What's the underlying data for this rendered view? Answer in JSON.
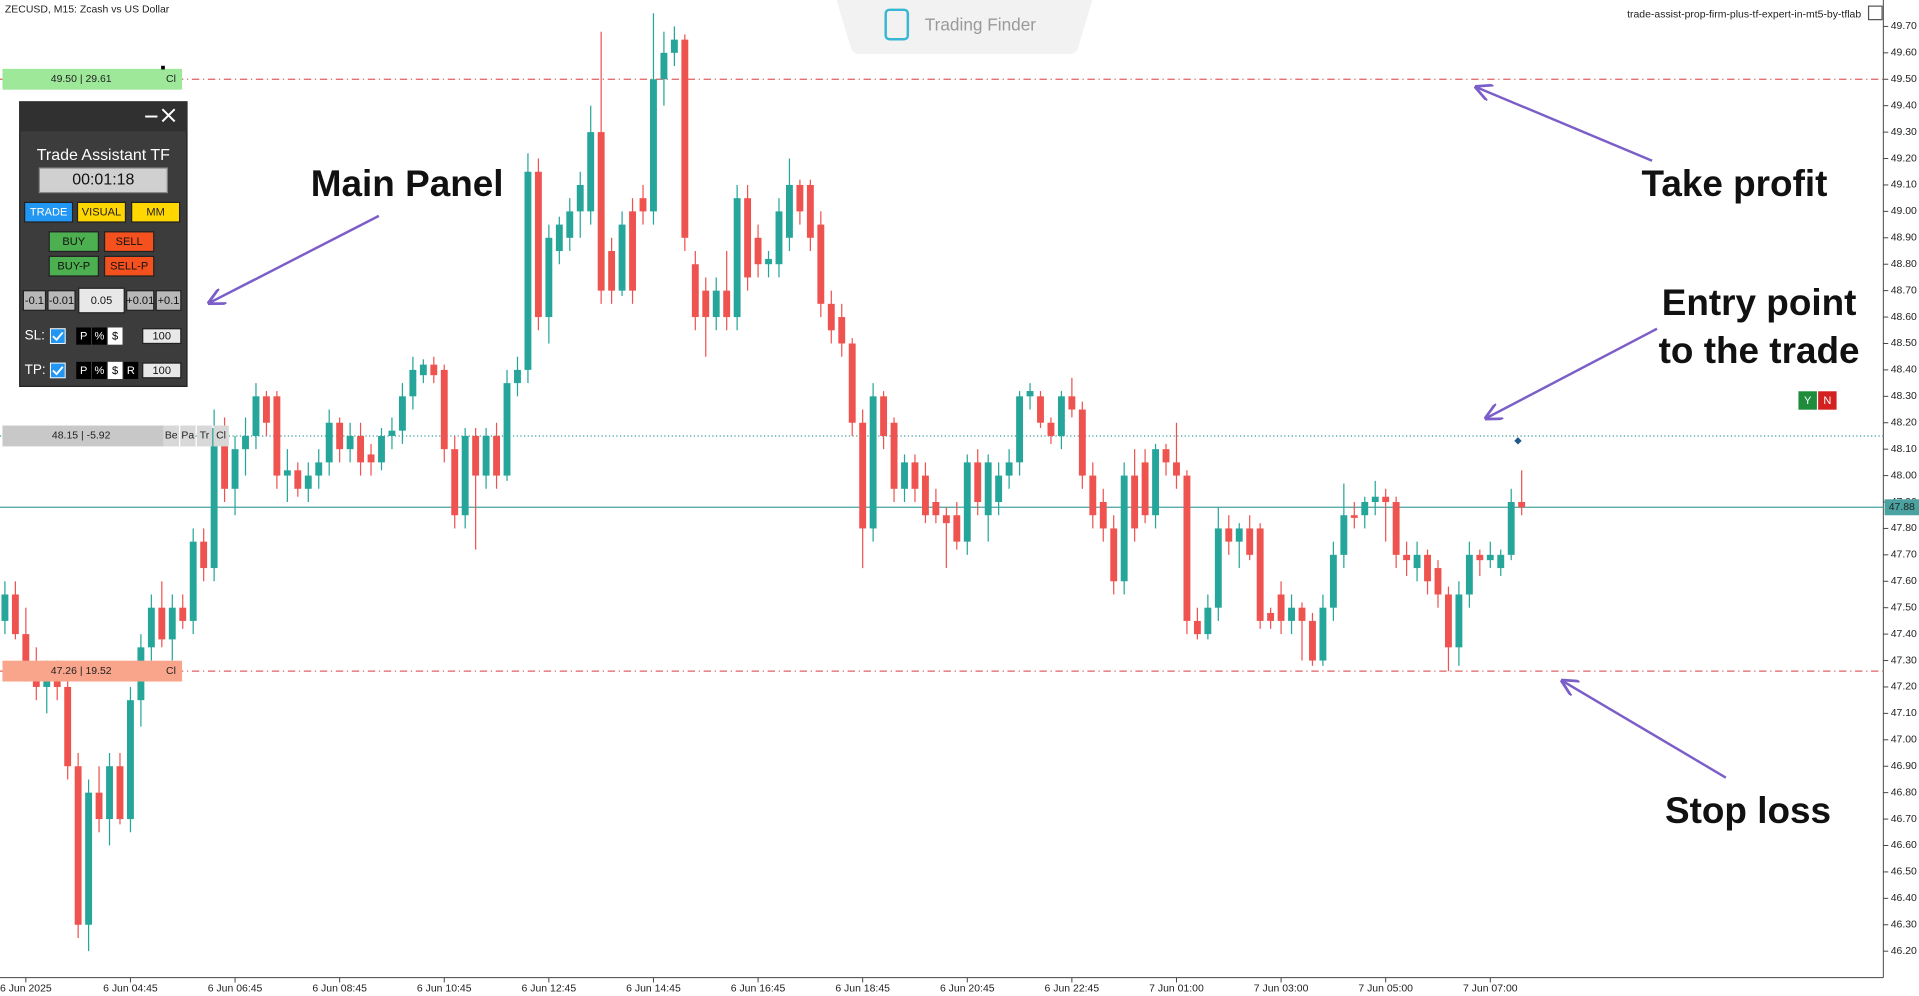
{
  "header": {
    "symbol": "ZECUSD, M15:  Zcash vs US Dollar",
    "brand": "Trading Finder",
    "file": "trade-assist-prop-firm-plus-tf-expert-in-mt5-by-tflab"
  },
  "panel": {
    "title": "Trade Assistant TF",
    "timer": "00:01:18",
    "modes": [
      "TRADE",
      "VISUAL",
      "MM"
    ],
    "orders": [
      "BUY",
      "SELL",
      "BUY-P",
      "SELL-P"
    ],
    "steps": [
      "-0.1",
      "-0.01",
      "0.05",
      "+0.01",
      "+0.1"
    ],
    "sl": {
      "label": "SL:",
      "units": [
        "P",
        "%",
        "$"
      ],
      "amount": "100"
    },
    "tp": {
      "label": "TP:",
      "units": [
        "P",
        "%",
        "$",
        "R"
      ],
      "amount": "100"
    }
  },
  "level_buttons": {
    "tp": [
      "Cl"
    ],
    "entry": [
      "Be",
      "Pa",
      "Tr",
      "Cl"
    ],
    "sl": [
      "Cl"
    ]
  },
  "confirm": [
    "Y",
    "N"
  ],
  "annotations": {
    "main_panel": "Main Panel",
    "take_profit": "Take profit",
    "entry": [
      "Entry point",
      "to the trade"
    ],
    "stop_loss": "Stop loss"
  },
  "chart_data": {
    "type": "candlestick",
    "up_color": "#26a69a",
    "down_color": "#ef5350",
    "ylim": [
      46.1,
      49.8
    ],
    "yticks": [
      {
        "value": 46.2,
        "label": "46.20"
      },
      {
        "value": 46.3,
        "label": "46.30"
      },
      {
        "value": 46.4,
        "label": "46.40"
      },
      {
        "value": 46.5,
        "label": "46.50"
      },
      {
        "value": 46.6,
        "label": "46.60"
      },
      {
        "value": 46.7,
        "label": "46.70"
      },
      {
        "value": 46.8,
        "label": "46.80"
      },
      {
        "value": 46.9,
        "label": "46.90"
      },
      {
        "value": 47.0,
        "label": "47.00"
      },
      {
        "value": 47.1,
        "label": "47.10"
      },
      {
        "value": 47.2,
        "label": "47.20"
      },
      {
        "value": 47.3,
        "label": "47.30"
      },
      {
        "value": 47.4,
        "label": "47.40"
      },
      {
        "value": 47.5,
        "label": "47.50"
      },
      {
        "value": 47.6,
        "label": "47.60"
      },
      {
        "value": 47.7,
        "label": "47.70"
      },
      {
        "value": 47.8,
        "label": "47.80"
      },
      {
        "value": 47.9,
        "label": "47.90"
      },
      {
        "value": 48.0,
        "label": "48.00"
      },
      {
        "value": 48.1,
        "label": "48.10"
      },
      {
        "value": 48.2,
        "label": "48.20"
      },
      {
        "value": 48.3,
        "label": "48.30"
      },
      {
        "value": 48.4,
        "label": "48.40"
      },
      {
        "value": 48.5,
        "label": "48.50"
      },
      {
        "value": 48.6,
        "label": "48.60"
      },
      {
        "value": 48.7,
        "label": "48.70"
      },
      {
        "value": 48.8,
        "label": "48.80"
      },
      {
        "value": 48.9,
        "label": "48.90"
      },
      {
        "value": 49.0,
        "label": "49.00"
      },
      {
        "value": 49.1,
        "label": "49.10"
      },
      {
        "value": 49.2,
        "label": "49.20"
      },
      {
        "value": 49.3,
        "label": "49.30"
      },
      {
        "value": 49.4,
        "label": "49.40"
      },
      {
        "value": 49.5,
        "label": "49.50"
      },
      {
        "value": 49.6,
        "label": "49.60"
      },
      {
        "value": 49.7,
        "label": "49.70"
      }
    ],
    "categories": [
      null,
      null,
      "6 Jun 2025",
      null,
      null,
      null,
      null,
      null,
      null,
      null,
      null,
      null,
      "6 Jun 04:45",
      null,
      null,
      null,
      null,
      null,
      null,
      null,
      null,
      null,
      "6 Jun 06:45",
      null,
      null,
      null,
      null,
      null,
      null,
      null,
      null,
      null,
      "6 Jun 08:45",
      null,
      null,
      null,
      null,
      null,
      null,
      null,
      null,
      null,
      "6 Jun 10:45",
      null,
      null,
      null,
      null,
      null,
      null,
      null,
      null,
      null,
      "6 Jun 12:45",
      null,
      null,
      null,
      null,
      null,
      null,
      null,
      null,
      null,
      "6 Jun 14:45",
      null,
      null,
      null,
      null,
      null,
      null,
      null,
      null,
      null,
      "6 Jun 16:45",
      null,
      null,
      null,
      null,
      null,
      null,
      null,
      null,
      null,
      "6 Jun 18:45",
      null,
      null,
      null,
      null,
      null,
      null,
      null,
      null,
      null,
      "6 Jun 20:45",
      null,
      null,
      null,
      null,
      null,
      null,
      null,
      null,
      null,
      "6 Jun 22:45",
      null,
      null,
      null,
      null,
      null,
      null,
      null,
      null,
      null,
      "7 Jun 01:00",
      null,
      null,
      null,
      null,
      null,
      null,
      null,
      null,
      null,
      "7 Jun 03:00",
      null,
      null,
      null,
      null,
      null,
      null,
      null,
      null,
      null,
      "7 Jun 05:00",
      null,
      null,
      null,
      null,
      null,
      null,
      null,
      null,
      null,
      "7 Jun 07:00",
      null,
      null,
      null
    ],
    "ohlc": [
      [
        47.45,
        47.6,
        47.4,
        47.55
      ],
      [
        47.55,
        47.6,
        47.38,
        47.4
      ],
      [
        47.4,
        47.5,
        47.22,
        47.28
      ],
      [
        47.28,
        47.35,
        47.15,
        47.2
      ],
      [
        47.2,
        47.3,
        47.1,
        47.25
      ],
      [
        47.25,
        47.3,
        47.15,
        47.2
      ],
      [
        47.2,
        47.25,
        46.85,
        46.9
      ],
      [
        46.9,
        46.95,
        46.25,
        46.3
      ],
      [
        46.3,
        46.85,
        46.2,
        46.8
      ],
      [
        46.8,
        46.9,
        46.65,
        46.7
      ],
      [
        46.7,
        46.95,
        46.6,
        46.9
      ],
      [
        46.9,
        46.95,
        46.68,
        46.7
      ],
      [
        46.7,
        47.2,
        46.65,
        47.15
      ],
      [
        47.15,
        47.4,
        47.05,
        47.35
      ],
      [
        47.35,
        47.55,
        47.3,
        47.5
      ],
      [
        47.5,
        47.6,
        47.35,
        47.38
      ],
      [
        47.38,
        47.55,
        47.3,
        47.5
      ],
      [
        47.5,
        47.55,
        47.42,
        47.45
      ],
      [
        47.45,
        47.8,
        47.4,
        47.75
      ],
      [
        47.75,
        47.8,
        47.6,
        47.65
      ],
      [
        47.65,
        48.25,
        47.6,
        48.18
      ],
      [
        48.18,
        48.22,
        47.9,
        47.95
      ],
      [
        47.95,
        48.15,
        47.85,
        48.1
      ],
      [
        48.1,
        48.22,
        48.0,
        48.15
      ],
      [
        48.15,
        48.35,
        48.1,
        48.3
      ],
      [
        48.3,
        48.32,
        48.15,
        48.2
      ],
      [
        48.3,
        48.32,
        47.95,
        48.0
      ],
      [
        48.0,
        48.1,
        47.9,
        48.02
      ],
      [
        48.02,
        48.05,
        47.92,
        47.95
      ],
      [
        47.95,
        48.05,
        47.9,
        48.0
      ],
      [
        48.0,
        48.1,
        47.95,
        48.05
      ],
      [
        48.05,
        48.25,
        48.0,
        48.2
      ],
      [
        48.2,
        48.22,
        48.05,
        48.1
      ],
      [
        48.1,
        48.2,
        48.05,
        48.15
      ],
      [
        48.15,
        48.2,
        48.0,
        48.05
      ],
      [
        48.08,
        48.12,
        48.0,
        48.05
      ],
      [
        48.05,
        48.18,
        48.02,
        48.15
      ],
      [
        48.15,
        48.22,
        48.1,
        48.17
      ],
      [
        48.17,
        48.35,
        48.12,
        48.3
      ],
      [
        48.3,
        48.45,
        48.25,
        48.4
      ],
      [
        48.38,
        48.44,
        48.35,
        48.42
      ],
      [
        48.42,
        48.45,
        48.35,
        48.38
      ],
      [
        48.4,
        48.42,
        48.05,
        48.1
      ],
      [
        48.1,
        48.15,
        47.8,
        47.85
      ],
      [
        47.85,
        48.18,
        47.8,
        48.15
      ],
      [
        48.15,
        48.18,
        47.72,
        48.0
      ],
      [
        48.0,
        48.18,
        47.95,
        48.15
      ],
      [
        48.15,
        48.2,
        47.95,
        48.0
      ],
      [
        48.0,
        48.4,
        47.98,
        48.35
      ],
      [
        48.35,
        48.45,
        48.3,
        48.4
      ],
      [
        48.4,
        49.22,
        48.35,
        49.15
      ],
      [
        49.15,
        49.2,
        48.55,
        48.6
      ],
      [
        48.6,
        48.95,
        48.5,
        48.9
      ],
      [
        48.85,
        48.98,
        48.8,
        48.95
      ],
      [
        48.9,
        49.05,
        48.85,
        49.0
      ],
      [
        49.0,
        49.15,
        48.9,
        49.1
      ],
      [
        49.0,
        49.4,
        48.95,
        49.3
      ],
      [
        49.3,
        49.68,
        48.65,
        48.7
      ],
      [
        48.85,
        48.9,
        48.65,
        48.7
      ],
      [
        48.7,
        49.0,
        48.68,
        48.95
      ],
      [
        49.0,
        49.05,
        48.65,
        48.7
      ],
      [
        49.05,
        49.1,
        48.95,
        49.0
      ],
      [
        49.0,
        49.75,
        48.95,
        49.5
      ],
      [
        49.5,
        49.68,
        49.4,
        49.6
      ],
      [
        49.6,
        49.7,
        49.55,
        49.65
      ],
      [
        49.65,
        49.67,
        48.85,
        48.9
      ],
      [
        48.8,
        48.85,
        48.55,
        48.6
      ],
      [
        48.7,
        48.75,
        48.45,
        48.6
      ],
      [
        48.6,
        48.75,
        48.55,
        48.7
      ],
      [
        48.7,
        48.85,
        48.55,
        48.6
      ],
      [
        48.6,
        49.1,
        48.55,
        49.05
      ],
      [
        49.05,
        49.1,
        48.7,
        48.75
      ],
      [
        48.9,
        48.95,
        48.75,
        48.8
      ],
      [
        48.8,
        48.85,
        48.75,
        48.82
      ],
      [
        48.8,
        49.05,
        48.75,
        49.0
      ],
      [
        48.9,
        49.2,
        48.85,
        49.1
      ],
      [
        49.1,
        49.12,
        48.95,
        49.0
      ],
      [
        49.1,
        49.12,
        48.85,
        48.9
      ],
      [
        48.95,
        49.0,
        48.6,
        48.65
      ],
      [
        48.65,
        48.7,
        48.5,
        48.55
      ],
      [
        48.6,
        48.65,
        48.45,
        48.5
      ],
      [
        48.5,
        48.52,
        48.15,
        48.2
      ],
      [
        48.2,
        48.25,
        47.65,
        47.8
      ],
      [
        47.8,
        48.35,
        47.75,
        48.3
      ],
      [
        48.3,
        48.32,
        48.1,
        48.15
      ],
      [
        48.2,
        48.22,
        47.9,
        47.95
      ],
      [
        47.95,
        48.08,
        47.9,
        48.05
      ],
      [
        48.05,
        48.08,
        47.9,
        47.95
      ],
      [
        48.0,
        48.05,
        47.82,
        47.85
      ],
      [
        47.9,
        47.95,
        47.82,
        47.85
      ],
      [
        47.85,
        47.88,
        47.65,
        47.82
      ],
      [
        47.85,
        47.9,
        47.72,
        47.75
      ],
      [
        47.75,
        48.08,
        47.7,
        48.05
      ],
      [
        48.05,
        48.1,
        47.85,
        47.9
      ],
      [
        47.85,
        48.08,
        47.75,
        48.05
      ],
      [
        47.9,
        48.05,
        47.85,
        48.0
      ],
      [
        48.0,
        48.1,
        47.95,
        48.05
      ],
      [
        48.05,
        48.32,
        48.0,
        48.3
      ],
      [
        48.3,
        48.35,
        48.25,
        48.32
      ],
      [
        48.3,
        48.32,
        48.18,
        48.2
      ],
      [
        48.2,
        48.22,
        48.12,
        48.15
      ],
      [
        48.15,
        48.32,
        48.1,
        48.3
      ],
      [
        48.3,
        48.37,
        48.22,
        48.25
      ],
      [
        48.25,
        48.28,
        47.95,
        48.0
      ],
      [
        48.0,
        48.05,
        47.8,
        47.85
      ],
      [
        47.9,
        47.95,
        47.75,
        47.8
      ],
      [
        47.8,
        47.85,
        47.55,
        47.6
      ],
      [
        47.6,
        48.05,
        47.55,
        48.0
      ],
      [
        48.0,
        48.1,
        47.75,
        47.8
      ],
      [
        48.05,
        48.1,
        47.82,
        47.85
      ],
      [
        47.85,
        48.12,
        47.8,
        48.1
      ],
      [
        48.1,
        48.12,
        48.0,
        48.05
      ],
      [
        48.05,
        48.2,
        47.95,
        48.0
      ],
      [
        48.0,
        48.02,
        47.4,
        47.45
      ],
      [
        47.45,
        47.5,
        47.38,
        47.4
      ],
      [
        47.4,
        47.55,
        47.38,
        47.5
      ],
      [
        47.5,
        47.88,
        47.45,
        47.8
      ],
      [
        47.8,
        47.85,
        47.7,
        47.75
      ],
      [
        47.75,
        47.82,
        47.65,
        47.8
      ],
      [
        47.8,
        47.85,
        47.68,
        47.7
      ],
      [
        47.8,
        47.82,
        47.42,
        47.45
      ],
      [
        47.48,
        47.5,
        47.42,
        47.45
      ],
      [
        47.55,
        47.6,
        47.4,
        47.45
      ],
      [
        47.45,
        47.55,
        47.4,
        47.5
      ],
      [
        47.5,
        47.52,
        47.3,
        47.45
      ],
      [
        47.45,
        47.48,
        47.28,
        47.3
      ],
      [
        47.3,
        47.55,
        47.28,
        47.5
      ],
      [
        47.5,
        47.75,
        47.45,
        47.7
      ],
      [
        47.7,
        47.97,
        47.65,
        47.85
      ],
      [
        47.85,
        47.9,
        47.8,
        47.84
      ],
      [
        47.85,
        47.92,
        47.8,
        47.9
      ],
      [
        47.9,
        47.98,
        47.85,
        47.92
      ],
      [
        47.92,
        47.95,
        47.75,
        47.9
      ],
      [
        47.9,
        47.92,
        47.65,
        47.7
      ],
      [
        47.7,
        47.75,
        47.62,
        47.68
      ],
      [
        47.65,
        47.75,
        47.6,
        47.7
      ],
      [
        47.7,
        47.72,
        47.55,
        47.6
      ],
      [
        47.65,
        47.68,
        47.5,
        47.55
      ],
      [
        47.55,
        47.58,
        47.26,
        47.35
      ],
      [
        47.35,
        47.6,
        47.28,
        47.55
      ],
      [
        47.55,
        47.75,
        47.5,
        47.7
      ],
      [
        47.7,
        47.72,
        47.62,
        47.68
      ],
      [
        47.68,
        47.75,
        47.65,
        47.7
      ],
      [
        47.65,
        47.72,
        47.62,
        47.7
      ],
      [
        47.7,
        47.95,
        47.68,
        47.9
      ],
      [
        47.9,
        48.02,
        47.85,
        47.88
      ]
    ],
    "levels": [
      49.5,
      48.15,
      47.26
    ],
    "level_labels": [
      "49.50 | 29.61",
      "48.15 | -5.92",
      "47.26 | 19.52"
    ],
    "last_price": 47.88
  }
}
